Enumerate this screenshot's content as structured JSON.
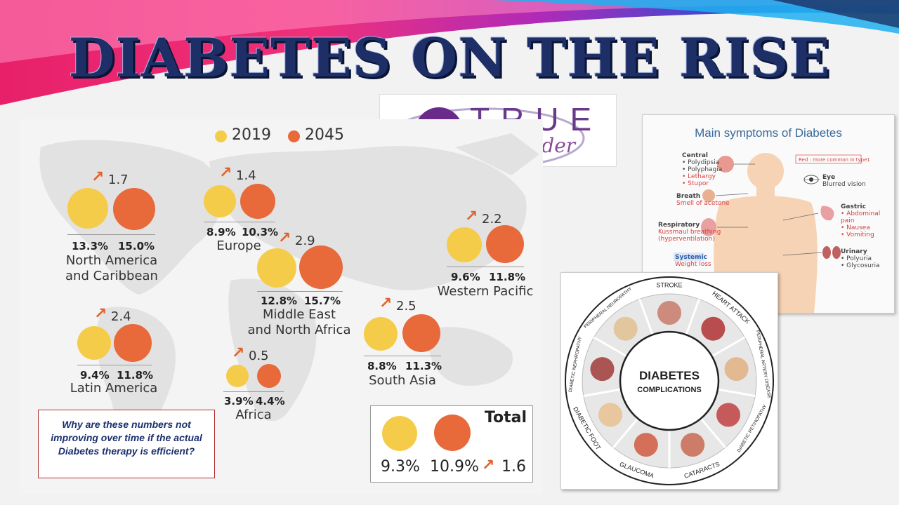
{
  "title": "DIABETES ON THE RISE",
  "logo": {
    "line1": "TRUE",
    "line2": "Pathfinder"
  },
  "map": {
    "legend": {
      "y2019": "2019",
      "y2045": "2045"
    },
    "regions": [
      {
        "name1": "North America",
        "name2": "and Caribbean",
        "ratio": "1.7",
        "v2019": "13.3%",
        "v2045": "15.0%"
      },
      {
        "name1": "Europe",
        "name2": "",
        "ratio": "1.4",
        "v2019": "8.9%",
        "v2045": "10.3%"
      },
      {
        "name1": "Middle East",
        "name2": "and North Africa",
        "ratio": "2.9",
        "v2019": "12.8%",
        "v2045": "15.7%"
      },
      {
        "name1": "Western Pacific",
        "name2": "",
        "ratio": "2.2",
        "v2019": "9.6%",
        "v2045": "11.8%"
      },
      {
        "name1": "Latin America",
        "name2": "",
        "ratio": "2.4",
        "v2019": "9.4%",
        "v2045": "11.8%"
      },
      {
        "name1": "Africa",
        "name2": "",
        "ratio": "0.5",
        "v2019": "3.9%",
        "v2045": "4.4%"
      },
      {
        "name1": "South Asia",
        "name2": "",
        "ratio": "2.5",
        "v2019": "8.8%",
        "v2045": "11.3%"
      }
    ],
    "total": {
      "label": "Total",
      "v2019": "9.3%",
      "v2045": "10.9%",
      "ratio": "1.6"
    },
    "colors": {
      "y2019": "#f5cc4a",
      "y2045": "#e8693a",
      "arrow": "#e0622c"
    }
  },
  "question": "Why are these numbers not improving over time if the actual  Diabetes therapy is efficient?",
  "symptoms": {
    "title": "Main symptoms of Diabetes",
    "note": "Red : more common in type1",
    "central": {
      "label": "Central",
      "items": [
        "• Polydipsia",
        "• Polyphagia",
        "• Lethargy",
        "• Stupor"
      ]
    },
    "breath": {
      "label": "Breath",
      "sub": "Smell of acetone"
    },
    "respiratory": {
      "label": "Respiratory",
      "sub1": "Kussmaul breathing",
      "sub2": "(hyperventilation)"
    },
    "systemic": {
      "label": "Systemic",
      "sub": "Weight loss"
    },
    "eye": {
      "label": "Eye",
      "sub": "Blurred vision"
    },
    "gastric": {
      "label": "Gastric",
      "items": [
        "• Abdominal pain",
        "• Nausea",
        "• Vomiting"
      ]
    },
    "urinary": {
      "label": "Urinary",
      "items": [
        "• Polyuria",
        "• Glycosuria"
      ]
    }
  },
  "complications": {
    "center1": "DIABETES",
    "center2": "COMPLICATIONS",
    "labels": [
      "STROKE",
      "HEART ATTACK",
      "PERIPHERAL ARTERY DISEASE",
      "DIABETIC RETINOPATHY",
      "CATARACTS",
      "GLAUCOMA",
      "DIABETIC FOOT",
      "DIABETIC NEPHROPATHY",
      "PERIPHERAL NEUROPATHY"
    ]
  }
}
